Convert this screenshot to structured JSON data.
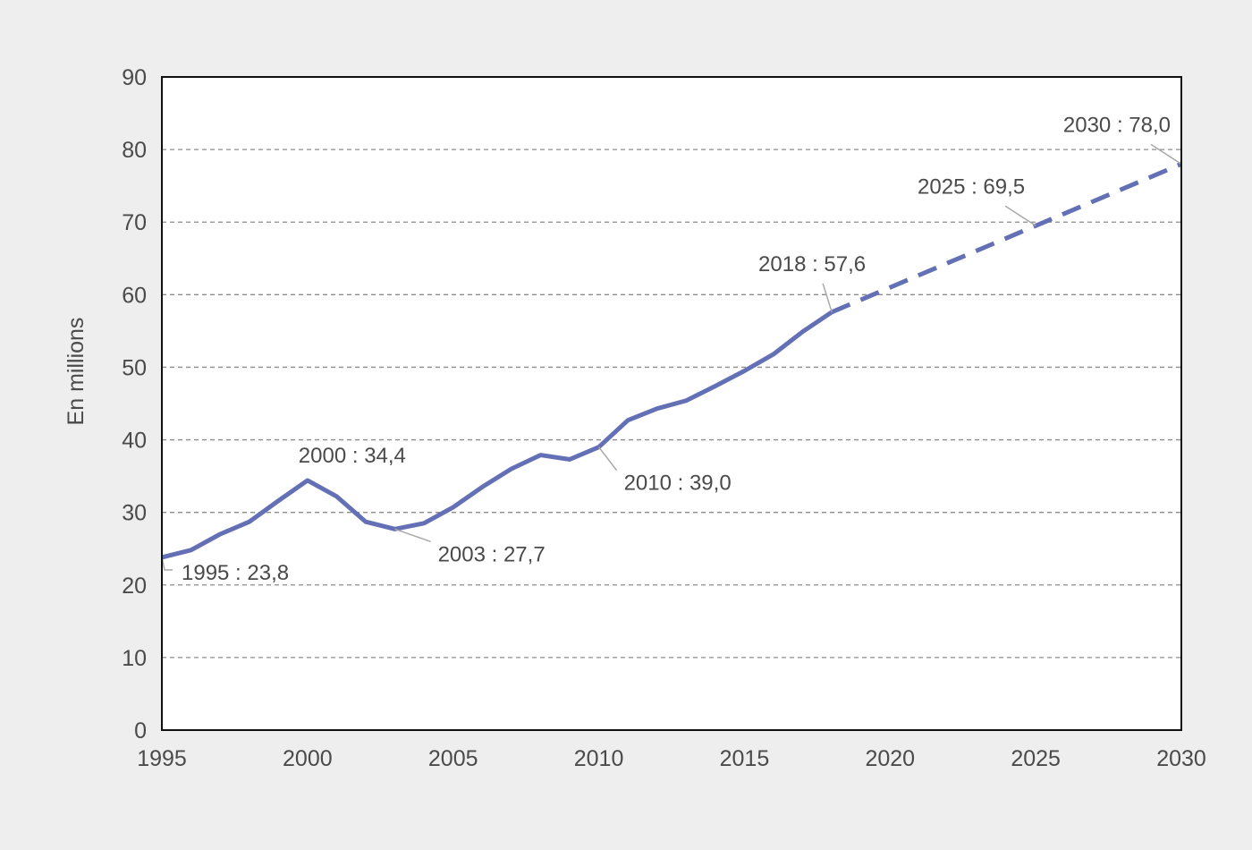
{
  "colors": {
    "background": "#eeeeee",
    "plot_background": "#ffffff",
    "series_line": "#6370b5",
    "gridline": "#8c8c8c",
    "leader_line": "#a8a8a8",
    "text": "#4a4a4a"
  },
  "chart_data": {
    "type": "line",
    "ylabel": "En millions",
    "xlim": [
      1995,
      2030
    ],
    "ylim": [
      0,
      90
    ],
    "grid": true,
    "grid_style": "dashed",
    "x_ticks": [
      1995,
      2000,
      2005,
      2010,
      2015,
      2020,
      2025,
      2030
    ],
    "y_ticks": [
      0,
      10,
      20,
      30,
      40,
      50,
      60,
      70,
      80,
      90
    ],
    "series": [
      {
        "style": "solid",
        "x": [
          1995,
          1996,
          1997,
          1998,
          1999,
          2000,
          2001,
          2002,
          2003,
          2004,
          2005,
          2006,
          2007,
          2008,
          2009,
          2010,
          2011,
          2012,
          2013,
          2014,
          2015,
          2016,
          2017,
          2018
        ],
        "y": [
          23.8,
          24.8,
          27.0,
          28.7,
          31.6,
          34.4,
          32.2,
          28.7,
          27.7,
          28.5,
          30.7,
          33.5,
          36.0,
          37.9,
          37.3,
          39.0,
          42.7,
          44.3,
          45.4,
          47.4,
          49.5,
          51.8,
          54.9,
          57.6
        ]
      },
      {
        "style": "dashed",
        "x": [
          2018,
          2025,
          2030
        ],
        "y": [
          57.6,
          69.5,
          78.0
        ]
      }
    ],
    "annotations": [
      {
        "text": "1995 : 23,8",
        "x": 1995,
        "y": 23.8,
        "placement": "below-right"
      },
      {
        "text": "2000 : 34,4",
        "x": 2000,
        "y": 34.4,
        "placement": "above"
      },
      {
        "text": "2003 : 27,7",
        "x": 2003,
        "y": 27.7,
        "placement": "below-right"
      },
      {
        "text": "2010 : 39,0",
        "x": 2010,
        "y": 39.0,
        "placement": "below-right"
      },
      {
        "text": "2018 : 57,6",
        "x": 2018,
        "y": 57.6,
        "placement": "above-left"
      },
      {
        "text": "2025 : 69,5",
        "x": 2025,
        "y": 69.5,
        "placement": "above-left"
      },
      {
        "text": "2030 : 78,0",
        "x": 2030,
        "y": 78.0,
        "placement": "above-left"
      }
    ]
  }
}
